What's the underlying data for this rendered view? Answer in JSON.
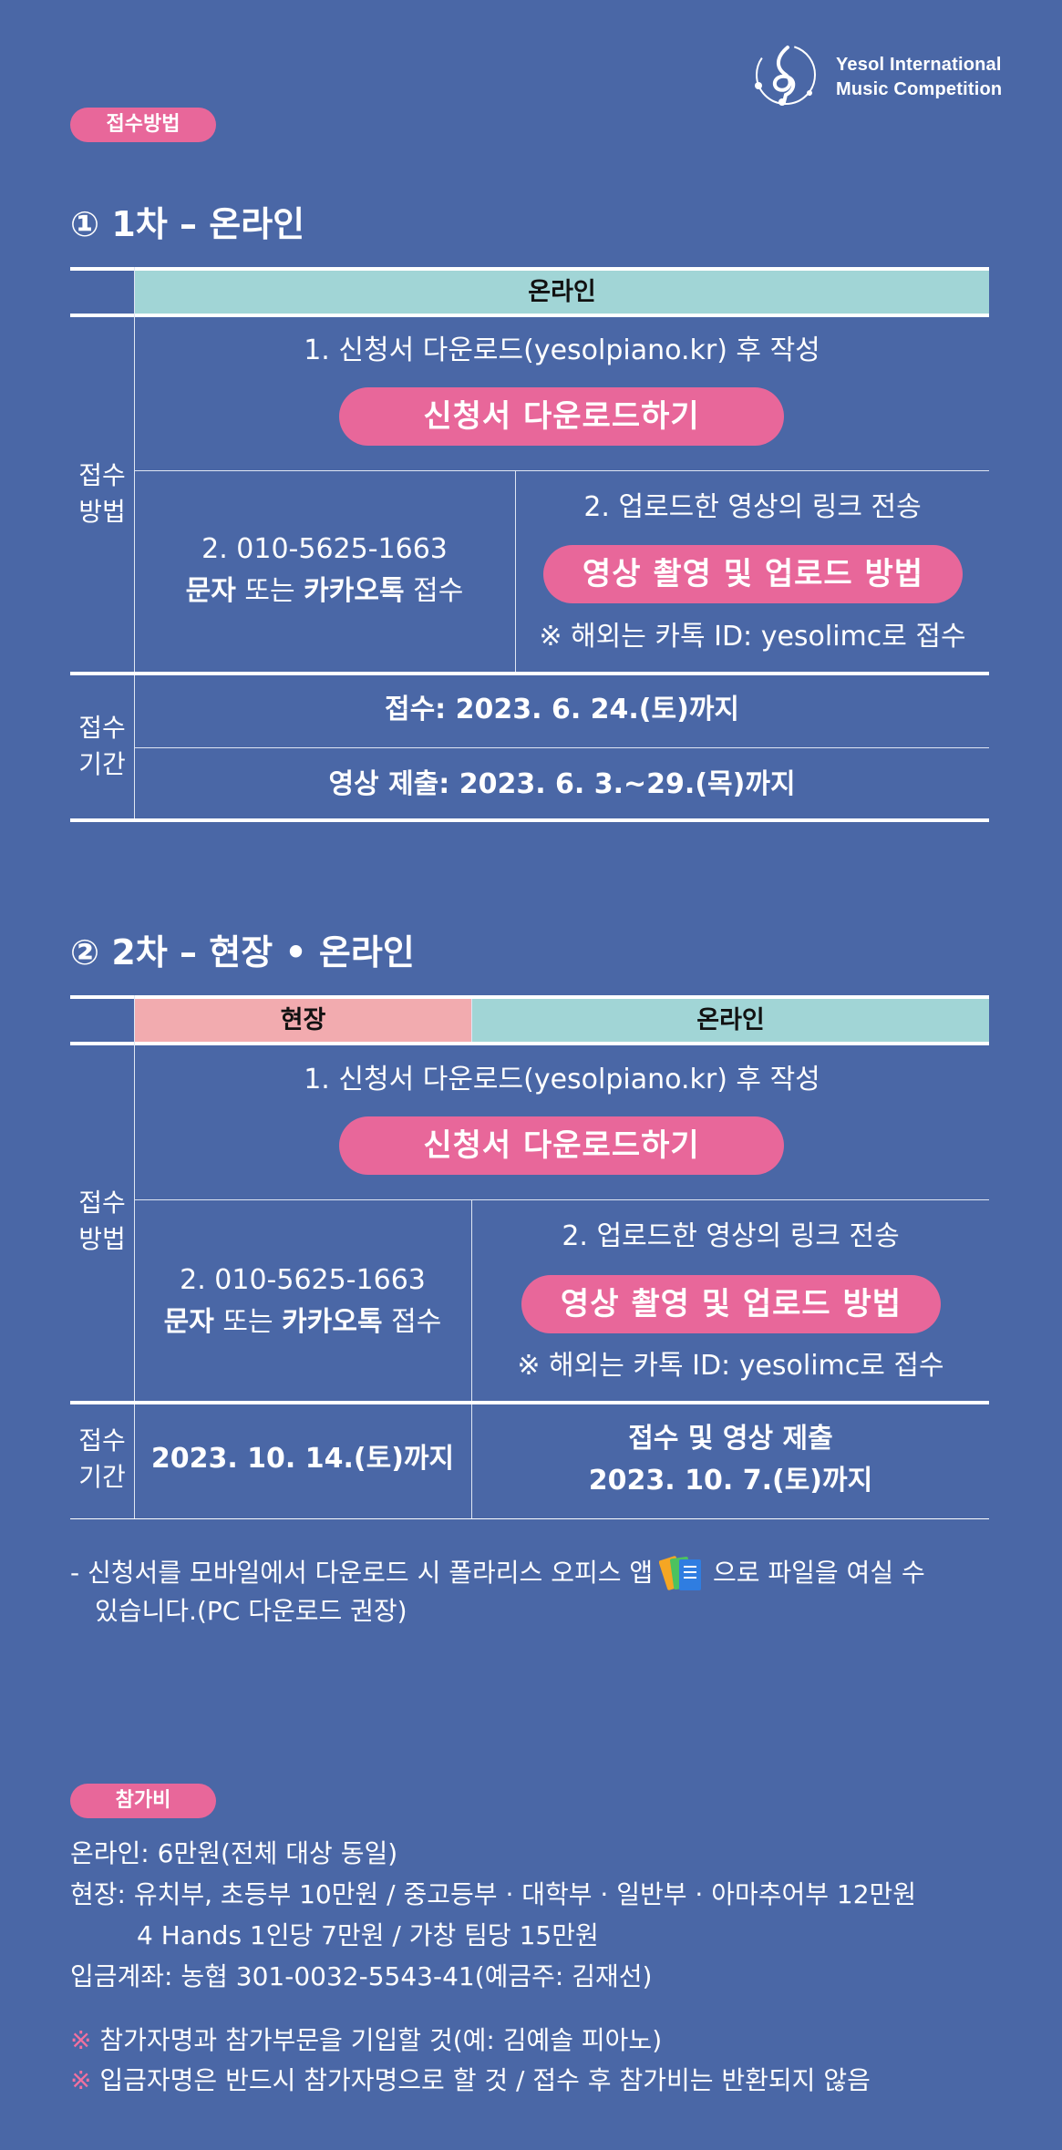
{
  "logo": {
    "line1": "Yesol International",
    "line2": "Music Competition"
  },
  "section1": {
    "tag": "접수방법",
    "round1": {
      "title": "① 1차 – 온라인",
      "header_online": "온라인",
      "side_method": "접수\n방법",
      "step1": "1. 신청서 다운로드(yesolpiano.kr) 후 작성",
      "download_button": "신청서 다운로드하기",
      "phone": "2. 010-5625-1663",
      "phone_sub_pre": "문자",
      "phone_sub_mid": " 또는 ",
      "phone_sub_bold": "카카오톡",
      "phone_sub_post": " 접수",
      "upload_step": "2. 업로드한 영상의 링크 전송",
      "video_button": "영상 촬영 및 업로드 방법",
      "overseas": "※ 해외는 카톡 ID: yesolimc로 접수",
      "side_period": "접수\n기간",
      "period1": "접수: 2023. 6. 24.(토)까지",
      "period2": "영상 제출: 2023. 6. 3.~29.(목)까지"
    },
    "round2": {
      "title": "② 2차 – 현장 • 온라인",
      "header_onsite": "현장",
      "header_online": "온라인",
      "side_method": "접수\n방법",
      "step1": "1. 신청서 다운로드(yesolpiano.kr) 후 작성",
      "download_button": "신청서 다운로드하기",
      "phone": "2. 010-5625-1663",
      "phone_sub_pre": "문자",
      "phone_sub_mid": " 또는 ",
      "phone_sub_bold": "카카오톡",
      "phone_sub_post": " 접수",
      "upload_step": "2. 업로드한 영상의 링크 전송",
      "video_button": "영상 촬영 및 업로드 방법",
      "overseas": "※ 해외는 카톡 ID: yesolimc로 접수",
      "side_period": "접수\n기간",
      "period_onsite": "2023. 10. 14.(토)까지",
      "period_online_1": "접수 및 영상 제출",
      "period_online_2": "2023. 10. 7.(토)까지"
    },
    "mobile_note_1a": "- 신청서를 모바일에서 다운로드 시 폴라리스 오피스 앱",
    "mobile_note_1b": "으로 파일을 여실 수",
    "mobile_note_2": "있습니다.(PC 다운로드 권장)"
  },
  "fee": {
    "tag": "참가비",
    "online": "온라인: 6만원(전체 대상 동일)",
    "onsite_1": "현장: 유치부, 초등부 10만원 / 중고등부 · 대학부 · 일반부 · 아마추어부 12만원",
    "onsite_2": "4 Hands 1인당 7만원 / 가창 팀당 15만원",
    "account": "입금계좌: 농협 301-0032-5543-41(예금주: 김재선)",
    "note_mark": "※",
    "note1": "참가자명과 참가부문을 기입할 것(예: 김예솔 피아노)",
    "note2": "입금자명은 반드시 참가자명으로 할 것 / 접수 후 참가비는 반환되지 않음"
  },
  "colors": {
    "background": "#4a67a6",
    "pink": "#e8679a",
    "teal_header": "#a1d5d6",
    "rose_header": "#f2abaf"
  }
}
